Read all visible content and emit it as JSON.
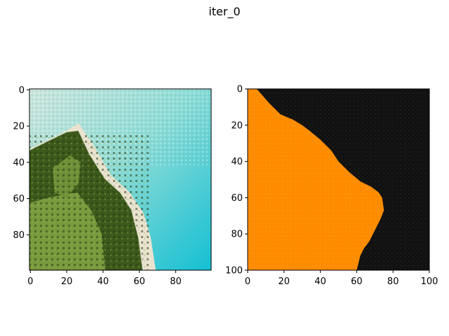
{
  "figure": {
    "suptitle": "iter_0"
  },
  "colors": {
    "mask_foreground": "#ff8c00",
    "mask_background": "#111111",
    "sand": "#e9e2cf",
    "shallow_water": "#8fdcd6",
    "deep_water": "#14bfd3",
    "vegetation_dark": "#3d5a1c",
    "vegetation_light": "#7a9a3e",
    "reef": "#cde6dd"
  },
  "chart_data": [
    {
      "type": "image",
      "name": "aerial-photo",
      "content": "aerial photo of coastline with green island at lower-left, sandy beach, turquoise water",
      "grid": false,
      "xlim": [
        -0.5,
        99.5
      ],
      "ylim": [
        99.5,
        -0.5
      ],
      "x_ticks": [
        0,
        20,
        40,
        60,
        80
      ],
      "y_ticks": [
        0,
        20,
        40,
        60,
        80
      ],
      "x_tick_labels": [
        "0",
        "20",
        "40",
        "60",
        "80"
      ],
      "y_tick_labels": [
        "0",
        "20",
        "40",
        "60",
        "80"
      ]
    },
    {
      "type": "heatmap",
      "name": "segmentation-mask",
      "classes": [
        "land",
        "water"
      ],
      "class_colors": [
        "#ff8c00",
        "#111111"
      ],
      "boundary": {
        "x": [
          0,
          5,
          12,
          18,
          25,
          30,
          34,
          40,
          46,
          50,
          56,
          62,
          68,
          72,
          74,
          75,
          73,
          70,
          67,
          64,
          62,
          61,
          60
        ],
        "y": [
          0,
          0,
          8,
          14,
          17,
          20,
          23,
          28,
          34,
          40,
          46,
          51,
          54,
          57,
          60,
          67,
          72,
          78,
          84,
          88,
          92,
          96,
          100
        ]
      },
      "grid": false,
      "xlim": [
        0,
        100
      ],
      "ylim": [
        100,
        0
      ],
      "x_ticks": [
        0,
        20,
        40,
        60,
        80,
        100
      ],
      "y_ticks": [
        0,
        20,
        40,
        60,
        80,
        100
      ],
      "x_tick_labels": [
        "0",
        "20",
        "40",
        "60",
        "80",
        "100"
      ],
      "y_tick_labels": [
        "0",
        "20",
        "40",
        "60",
        "80",
        "100"
      ]
    }
  ]
}
